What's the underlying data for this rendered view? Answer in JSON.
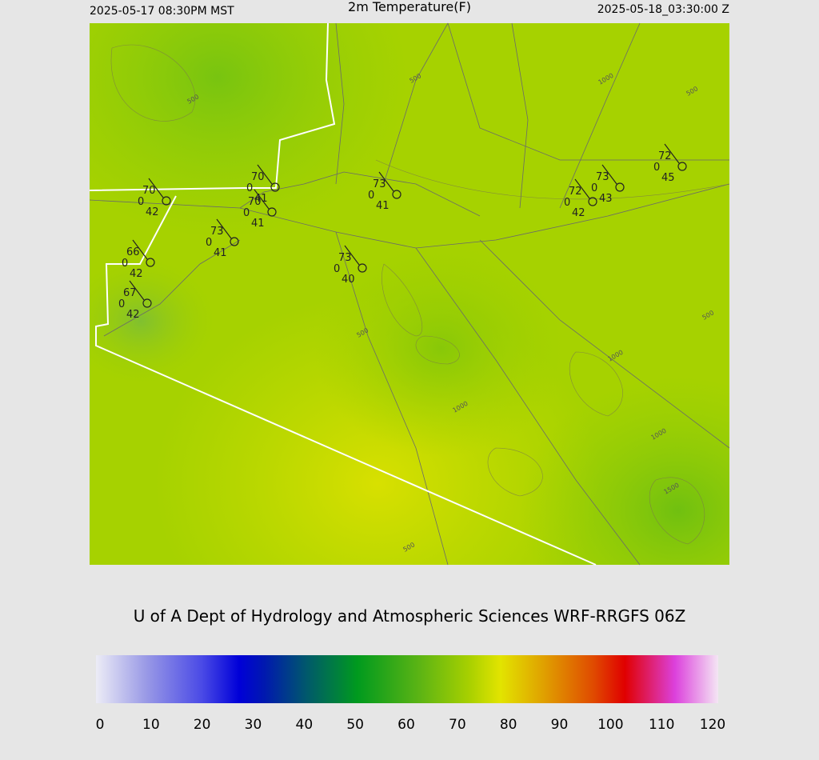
{
  "header": {
    "left": "2025-05-17 08:30PM MST",
    "title": "2m Temperature(F)",
    "right": "2025-05-18_03:30:00 Z"
  },
  "stations": [
    {
      "temp": 70,
      "wind": 0,
      "dewpoint": 42
    },
    {
      "temp": 70,
      "wind": 0,
      "dewpoint": 41
    },
    {
      "temp": 70,
      "wind": 0,
      "dewpoint": 41
    },
    {
      "temp": 73,
      "wind": 0,
      "dewpoint": 41
    },
    {
      "temp": 66,
      "wind": 0,
      "dewpoint": 42
    },
    {
      "temp": 67,
      "wind": 0,
      "dewpoint": 42
    },
    {
      "temp": 73,
      "wind": 0,
      "dewpoint": 40
    },
    {
      "temp": 73,
      "wind": 0,
      "dewpoint": 41
    },
    {
      "temp": 72,
      "wind": 0,
      "dewpoint": 42
    },
    {
      "temp": 73,
      "wind": 0,
      "dewpoint": 43
    },
    {
      "temp": 72,
      "wind": 0,
      "dewpoint": 45
    }
  ],
  "contour_labels": [
    500,
    500,
    1000,
    500,
    500,
    1000,
    1000,
    1000,
    1500,
    500,
    500
  ],
  "footer": "U of A Dept of Hydrology and Atmospheric Sciences WRF-RRGFS 06Z",
  "colorbar": {
    "ticks": [
      0,
      10,
      20,
      30,
      40,
      50,
      60,
      70,
      80,
      90,
      100,
      110,
      120
    ]
  }
}
